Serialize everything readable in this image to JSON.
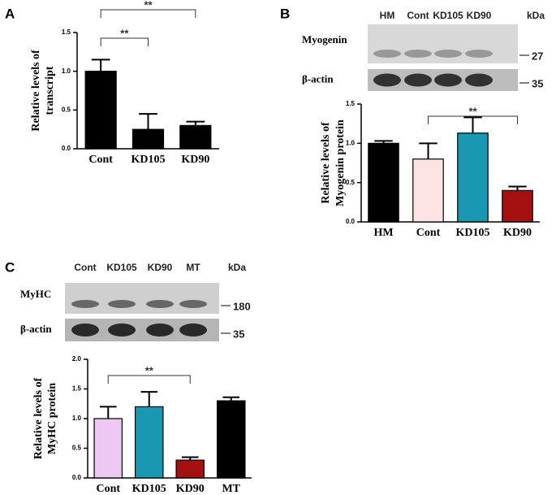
{
  "panels": [
    {
      "letter": "A"
    },
    {
      "letter": "B",
      "blot": {
        "lanes": [
          "HM",
          "Cont",
          "KD105",
          "KD90"
        ],
        "unit": "kDa",
        "rows": [
          {
            "label": "Myogenin",
            "marker": "27"
          },
          {
            "label": "β-actin",
            "marker": "35"
          }
        ]
      }
    },
    {
      "letter": "C",
      "blot": {
        "lanes": [
          "Cont",
          "KD105",
          "KD90",
          "MT"
        ],
        "unit": "kDa",
        "rows": [
          {
            "label": "MyHC",
            "marker": "180"
          },
          {
            "label": "β-actin",
            "marker": "35"
          }
        ]
      }
    }
  ],
  "chart_data": [
    {
      "type": "bar",
      "ylabel": [
        "Relative  levels of",
        "transcript"
      ],
      "categories": [
        "Cont",
        "KD105",
        "KD90"
      ],
      "values": [
        1.0,
        0.25,
        0.3
      ],
      "errors": [
        0.15,
        0.2,
        0.05
      ],
      "colors": [
        "#000000",
        "#000000",
        "#000000"
      ],
      "ylim": [
        0,
        1.5
      ],
      "yticks": [
        {
          "value": 0,
          "label": "0.0"
        },
        0.5,
        {
          "value": 1,
          "label": "1.0"
        },
        1.5
      ],
      "comparisons": [
        {
          "pair": [
            0,
            2
          ],
          "label": "**"
        },
        {
          "pair": [
            0,
            1
          ],
          "label": "**"
        }
      ]
    },
    {
      "type": "bar",
      "ylabel": [
        "Relative levels of",
        "Myogenin protein"
      ],
      "categories": [
        "HM",
        "Cont",
        "KD105",
        "KD90"
      ],
      "values": [
        1.0,
        0.8,
        1.13,
        0.4
      ],
      "errors": [
        0.03,
        0.2,
        0.2,
        0.05
      ],
      "colors": [
        "#000000",
        "#fde3e3",
        "#1a97b3",
        "#a40f0f"
      ],
      "ylim": [
        0,
        1.5
      ],
      "yticks": [
        {
          "value": 0,
          "label": "0.0"
        },
        0.5,
        {
          "value": 1,
          "label": "1.0"
        },
        1.5
      ],
      "comparisons": [
        {
          "pair": [
            1,
            3
          ],
          "label": "**"
        }
      ]
    },
    {
      "type": "bar",
      "ylabel": [
        "Relative  levels of",
        "MyHC  protein"
      ],
      "categories": [
        "Cont",
        "KD105",
        "KD90",
        "MT"
      ],
      "values": [
        1.0,
        1.2,
        0.3,
        1.3
      ],
      "errors": [
        0.2,
        0.25,
        0.05,
        0.06
      ],
      "colors": [
        "#ecc8f2",
        "#1a97b3",
        "#a40f0f",
        "#000000"
      ],
      "ylim": [
        0,
        2
      ],
      "yticks": [
        {
          "value": 0,
          "label": "0.0"
        },
        0.5,
        {
          "value": 1,
          "label": "1.0"
        },
        1.5,
        {
          "value": 2,
          "label": "2.0"
        }
      ],
      "comparisons": [
        {
          "pair": [
            0,
            2
          ],
          "label": "**"
        }
      ]
    }
  ]
}
